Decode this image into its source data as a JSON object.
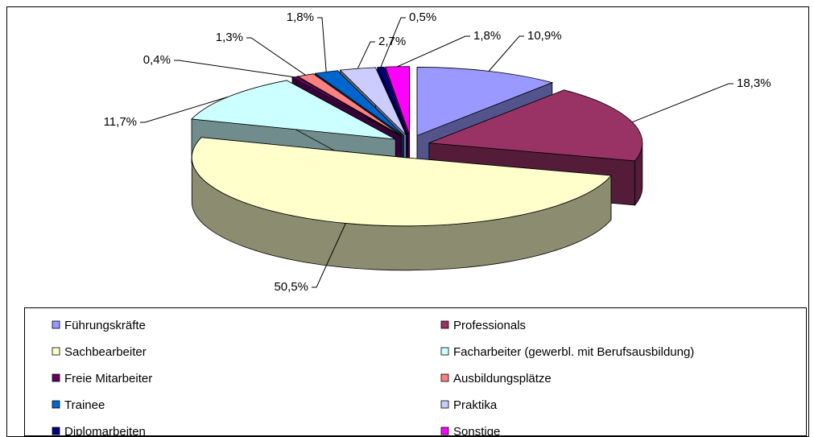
{
  "chart_data": {
    "type": "pie",
    "categories": [
      "Führungskräfte",
      "Professionals",
      "Sachbearbeiter",
      "Facharbeiter (gewerbl. mit Berufsausbildung)",
      "Freie Mitarbeiter",
      "Ausbildungsplätze",
      "Trainee",
      "Praktika",
      "Diplomarbeiten",
      "Sonstige"
    ],
    "values": [
      10.9,
      18.3,
      50.5,
      11.7,
      0.4,
      1.3,
      1.8,
      2.7,
      0.5,
      1.8
    ],
    "value_labels": [
      "10,9%",
      "18,3%",
      "50,5%",
      "11,7%",
      "0,4%",
      "1,3%",
      "1,8%",
      "2,7%",
      "0,5%",
      "1,8%"
    ],
    "colors": [
      "#9999ff",
      "#993366",
      "#ffffcc",
      "#ccffff",
      "#660066",
      "#ff8080",
      "#0066cc",
      "#ccccff",
      "#000080",
      "#ff00ff"
    ],
    "legend": "bottom"
  }
}
